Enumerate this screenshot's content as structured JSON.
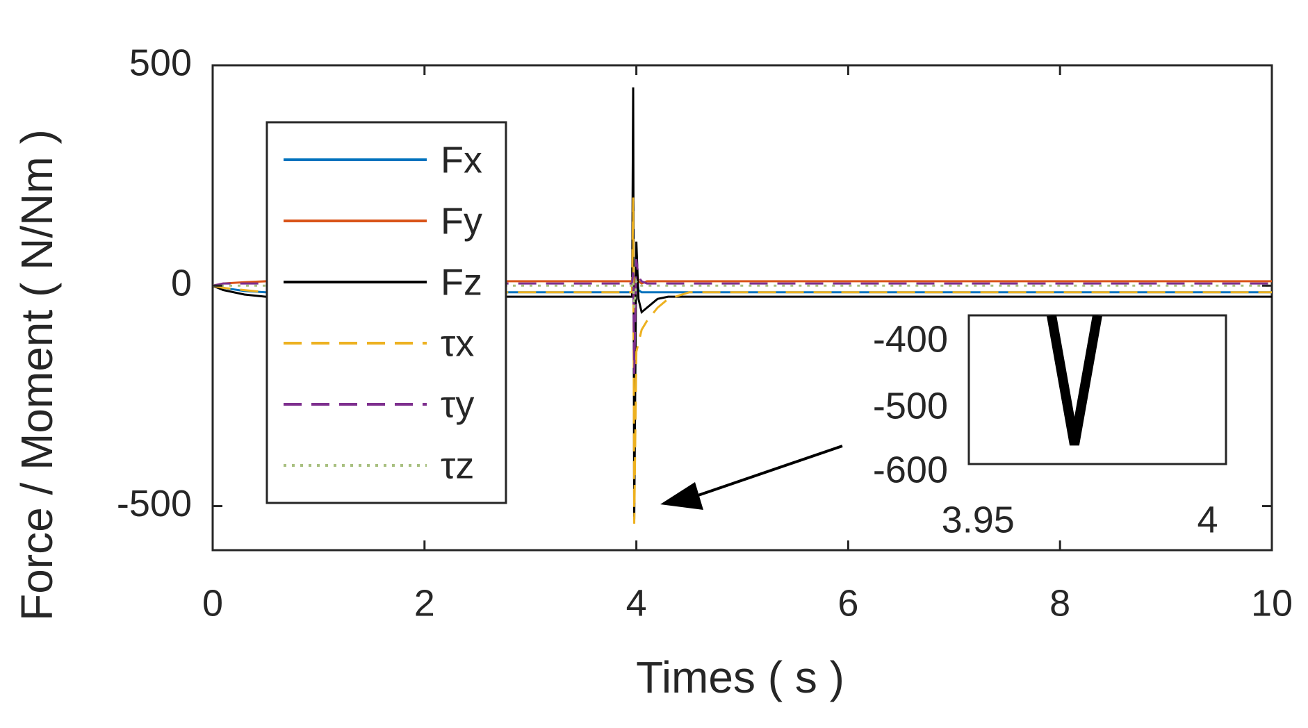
{
  "chart_data": [
    {
      "type": "line",
      "x_label": "Times ( s )",
      "y_label": "Force / Moment ( N/Nm )",
      "x": [
        0,
        0.1,
        0.3,
        0.5,
        1,
        2,
        3,
        3.96,
        3.97,
        3.98,
        4.0,
        4.02,
        4.05,
        4.1,
        4.2,
        4.3,
        4.5,
        5,
        6,
        8,
        10
      ],
      "xlim": [
        0,
        10
      ],
      "xticks": [
        0,
        2,
        4,
        6,
        8,
        10
      ],
      "ylim": [
        -600,
        500
      ],
      "yticks": [
        -500,
        0,
        500
      ],
      "legend": "upper left",
      "series": [
        {
          "name": "Fx",
          "color": "#0072bd",
          "style": "solid",
          "values": [
            0,
            -5,
            -12,
            -15,
            -15,
            -15,
            -15,
            -15,
            -20,
            10,
            30,
            -10,
            -15,
            -15,
            -15,
            -15,
            -15,
            -15,
            -15,
            -15,
            -15
          ]
        },
        {
          "name": "Fy",
          "color": "#d95319",
          "style": "solid",
          "values": [
            0,
            5,
            8,
            10,
            10,
            10,
            10,
            10,
            20,
            -30,
            40,
            10,
            5,
            10,
            10,
            10,
            10,
            10,
            10,
            10,
            10
          ]
        },
        {
          "name": "Fz",
          "color": "#000000",
          "style": "solid",
          "values": [
            0,
            -10,
            -20,
            -25,
            -25,
            -25,
            -25,
            -25,
            450,
            -530,
            100,
            -30,
            -60,
            -50,
            -30,
            -25,
            -25,
            -25,
            -25,
            -25,
            -25
          ]
        },
        {
          "name": "τx",
          "color": "#edb120",
          "style": "dashed",
          "values": [
            0,
            -5,
            -10,
            -15,
            -15,
            -15,
            -15,
            -15,
            200,
            -540,
            -150,
            -130,
            -100,
            -80,
            -50,
            -30,
            -15,
            -15,
            -15,
            -15,
            -15
          ]
        },
        {
          "name": "τy",
          "color": "#7e2f8e",
          "style": "dashed",
          "values": [
            0,
            5,
            5,
            5,
            5,
            5,
            5,
            5,
            30,
            -200,
            60,
            20,
            10,
            5,
            5,
            5,
            5,
            5,
            5,
            5,
            5
          ]
        },
        {
          "name": "τz",
          "color": "#a8c080",
          "style": "dotted",
          "values": [
            0,
            0,
            0,
            0,
            0,
            0,
            0,
            0,
            10,
            -50,
            10,
            0,
            0,
            0,
            0,
            0,
            0,
            0,
            0,
            0,
            0
          ]
        }
      ]
    },
    {
      "type": "line",
      "x": [
        3.966,
        3.971,
        3.976
      ],
      "xlim": [
        3.948,
        4.004
      ],
      "xticks": [
        3.95,
        4
      ],
      "ylim": [
        -590,
        -360
      ],
      "yticks": [
        -600,
        -500,
        -400
      ],
      "series": [
        {
          "color": "#000000",
          "style": "solid",
          "values": [
            -360,
            -560,
            -360
          ]
        }
      ]
    }
  ]
}
